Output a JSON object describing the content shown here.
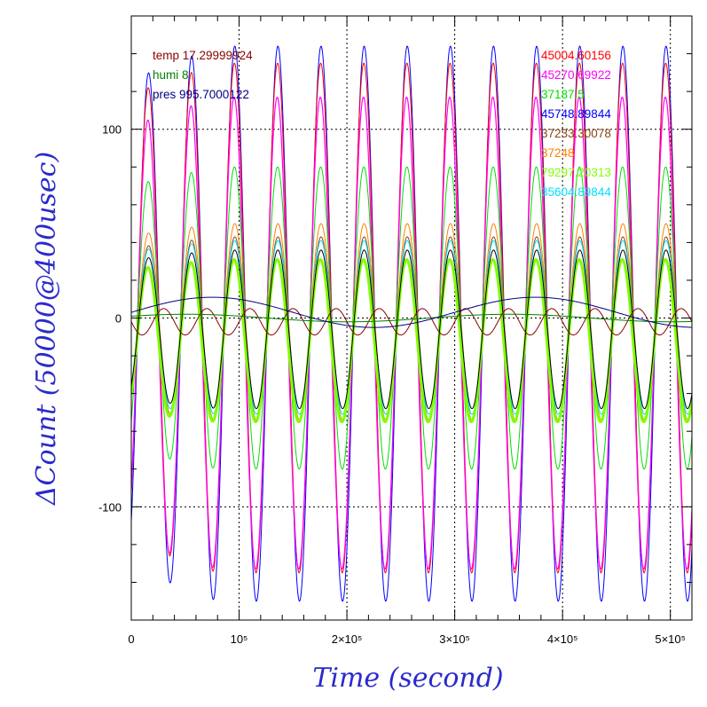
{
  "chart_data": {
    "type": "line",
    "xlabel": "Time (second)",
    "ylabel": "ΔCount (50000@400usec)",
    "xlim": [
      0,
      520000
    ],
    "ylim": [
      -160,
      160
    ],
    "x_ticks": [
      {
        "value": 0,
        "label": "0"
      },
      {
        "value": 100000,
        "label": "10⁵"
      },
      {
        "value": 200000,
        "label": "2×10⁵"
      },
      {
        "value": 300000,
        "label": "3×10⁵"
      },
      {
        "value": 400000,
        "label": "4×10⁵"
      },
      {
        "value": 500000,
        "label": "5×10⁵"
      }
    ],
    "y_ticks": [
      {
        "value": -100,
        "label": "-100"
      },
      {
        "value": 0,
        "label": "0"
      },
      {
        "value": 100,
        "label": "100"
      }
    ],
    "grid": "dotted",
    "legend_left": [
      {
        "text": "temp 17.29999924",
        "color": "#8b0000"
      },
      {
        "text": "humi 8",
        "color": "#008000"
      },
      {
        "text": "pres 995.7000122",
        "color": "#000080"
      }
    ],
    "legend_right": [
      {
        "text": "45004.60156",
        "color": "#ff0000"
      },
      {
        "text": "45270.69922",
        "color": "#ff00ff"
      },
      {
        "text": "37187.5",
        "color": "#00e000"
      },
      {
        "text": "45748.89844",
        "color": "#0000ff"
      },
      {
        "text": "37233.30078",
        "color": "#8b4513"
      },
      {
        "text": "37248",
        "color": "#ff8000"
      },
      {
        "text": "79297.20313",
        "color": "#80ff00"
      },
      {
        "text": "35604.89844",
        "color": "#00e0ff"
      }
    ],
    "oscillation_period": 40000,
    "series": [
      {
        "color": "#0000ff",
        "amplitude": 147,
        "offset": -3,
        "phase": 0.0,
        "stroke": 1.0
      },
      {
        "color": "#ff0000",
        "amplitude": 135,
        "offset": 0,
        "phase": 0.05,
        "stroke": 1.0
      },
      {
        "color": "#ff00ff",
        "amplitude": 125,
        "offset": -8,
        "phase": 0.1,
        "stroke": 1.2
      },
      {
        "color": "#00e000",
        "amplitude": 80,
        "offset": 0,
        "phase": 0.05,
        "stroke": 1.0
      },
      {
        "color": "#ff8000",
        "amplitude": 52,
        "offset": -2,
        "phase": 0.0,
        "stroke": 1.0
      },
      {
        "color": "#8b4513",
        "amplitude": 49,
        "offset": -6,
        "phase": 0.0,
        "stroke": 1.0
      },
      {
        "color": "#00e0ff",
        "amplitude": 46,
        "offset": -5,
        "phase": 0.0,
        "stroke": 1.0
      },
      {
        "color": "#80ff00",
        "amplitude": 43,
        "offset": -12,
        "phase": 0.1,
        "stroke": 3.0
      },
      {
        "color": "#000000",
        "amplitude": 42,
        "offset": -6,
        "phase": 0.0,
        "stroke": 1.0
      }
    ],
    "environment_lines": [
      {
        "color": "#8b0000",
        "note": "temp",
        "amplitude": 7,
        "offset": -2,
        "phase": 3.14
      },
      {
        "color": "#008000",
        "note": "humi",
        "amplitude": 2,
        "offset": 0,
        "phase": 0.5
      },
      {
        "color": "#000080",
        "note": "pres",
        "amplitude": 8,
        "offset": 3,
        "phase": 0
      }
    ]
  }
}
